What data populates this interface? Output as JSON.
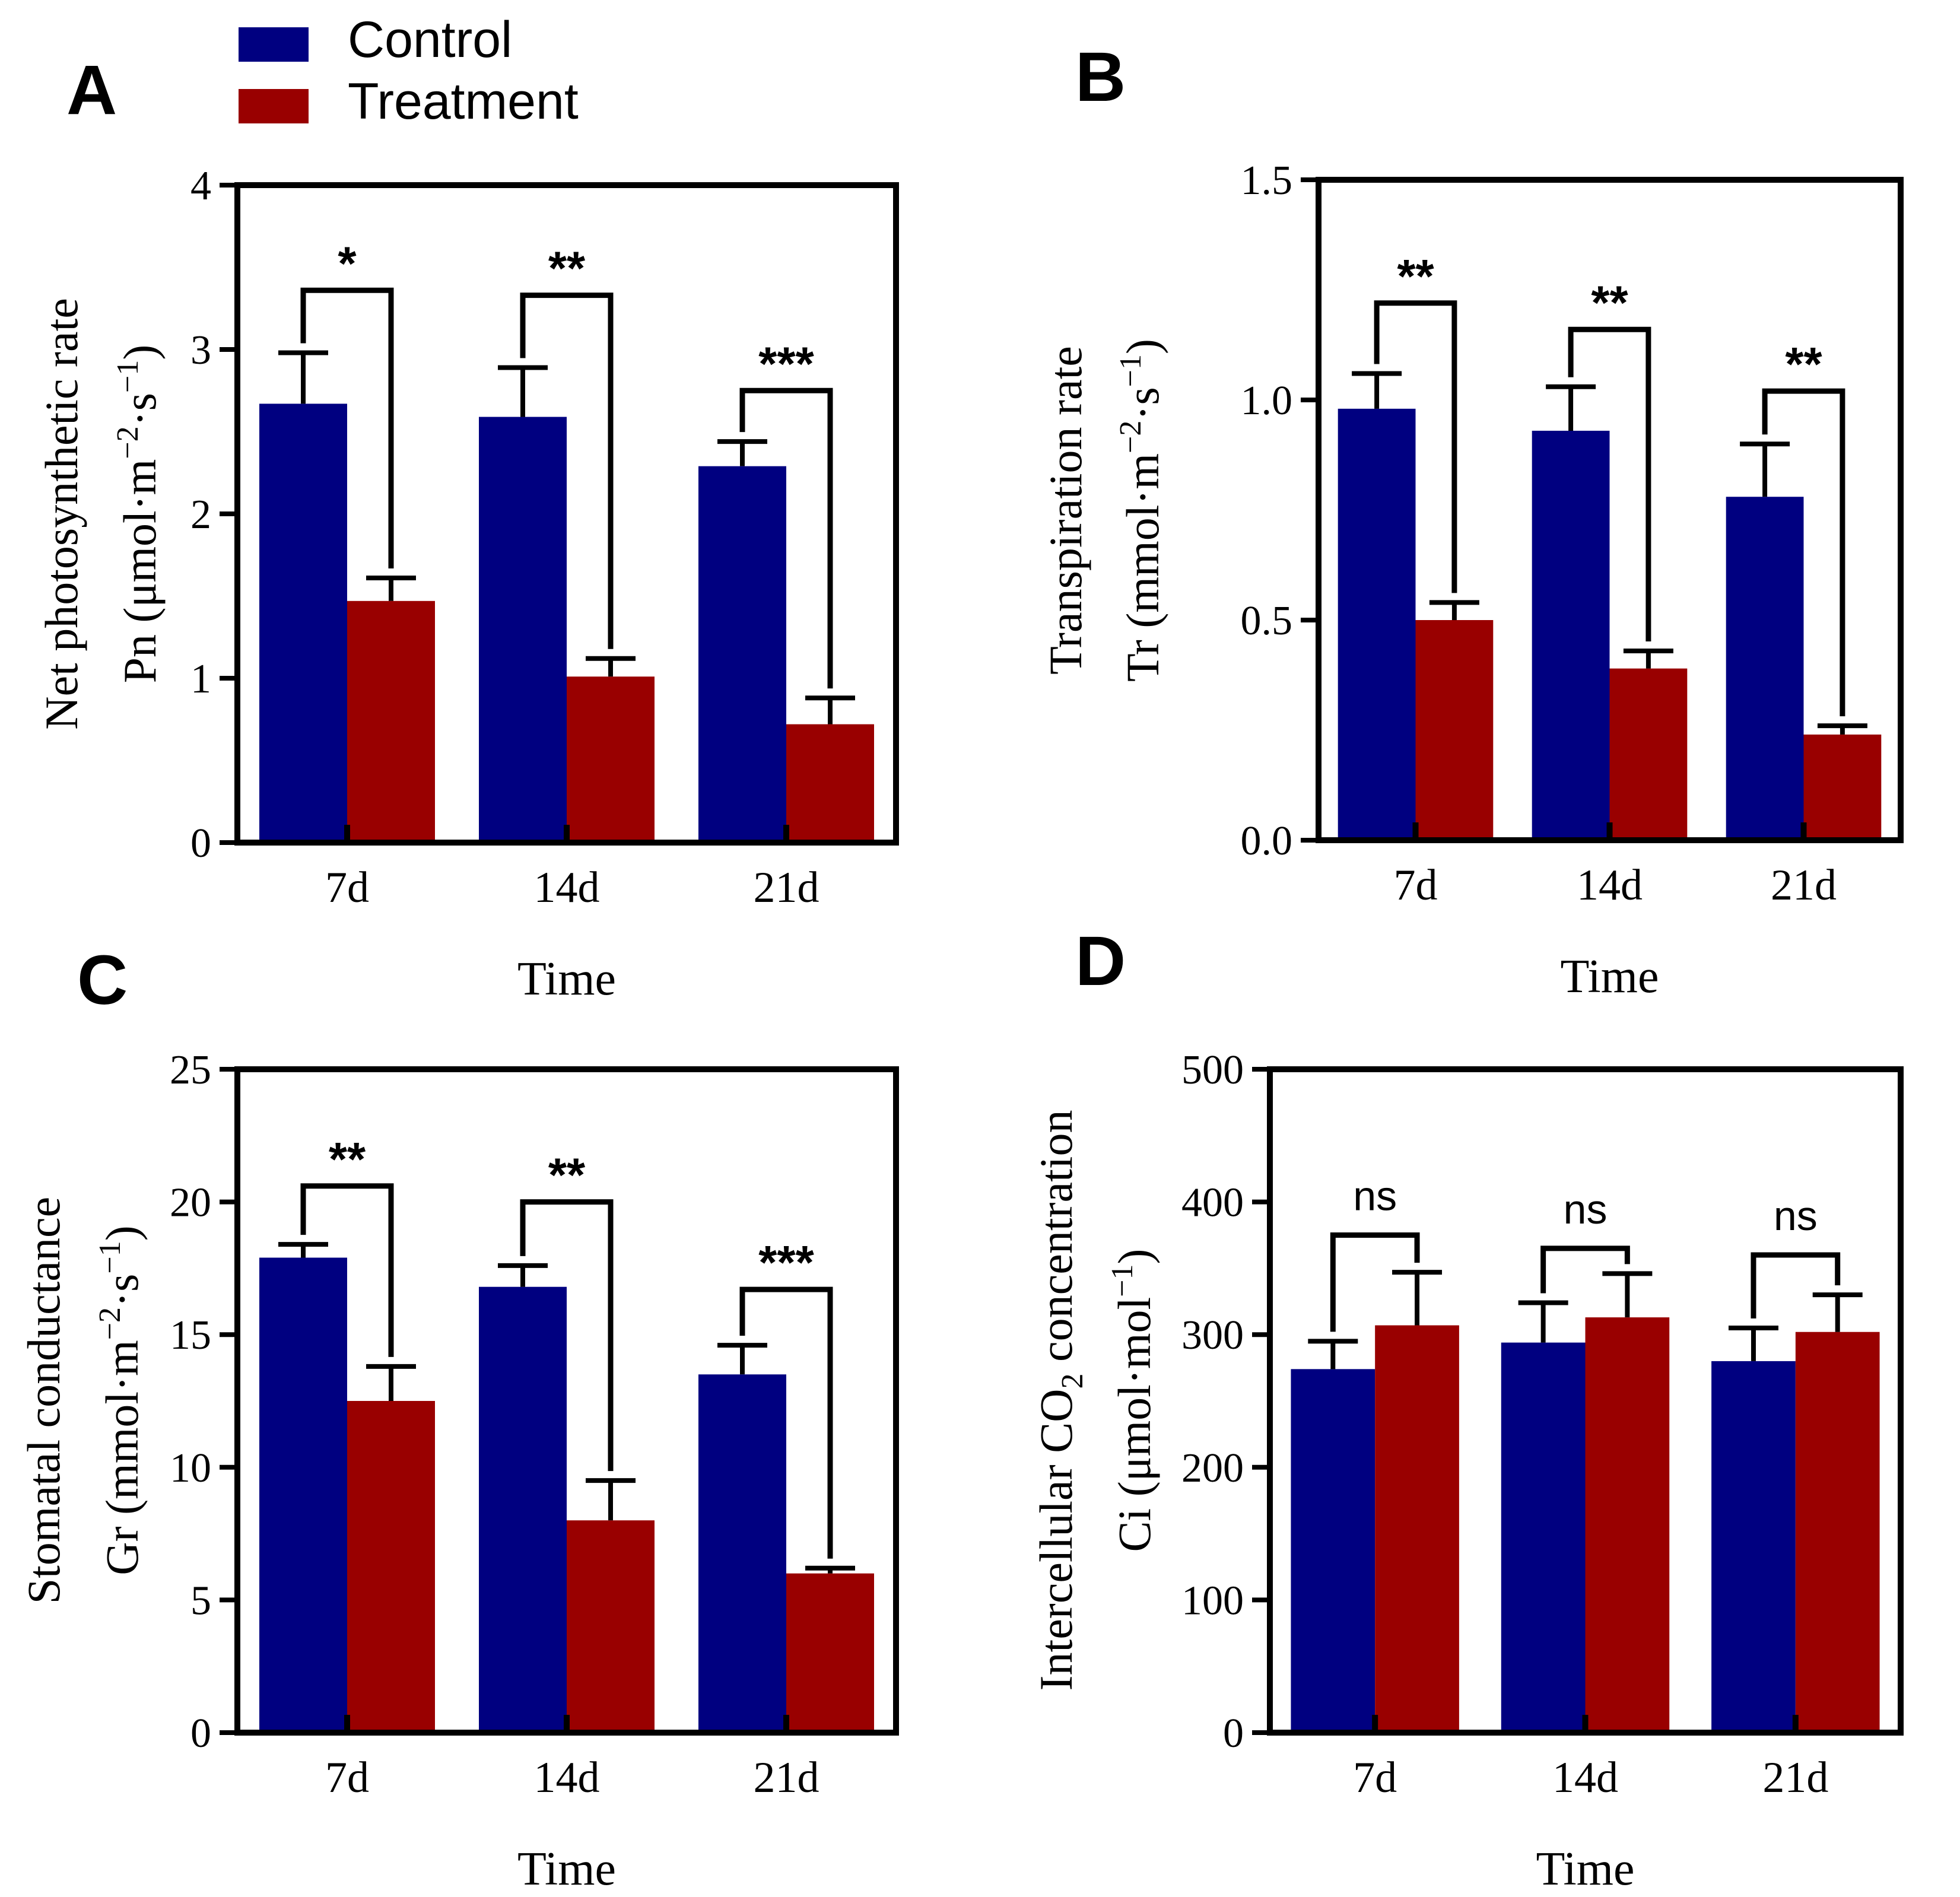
{
  "legend": {
    "entries": [
      {
        "name": "Control",
        "color": "#000080"
      },
      {
        "name": "Treatment",
        "color": "#990000"
      }
    ]
  },
  "colors": {
    "control": "#000080",
    "treatment": "#990000",
    "axis": "#000000"
  },
  "chart_data": [
    {
      "panel": "A",
      "type": "bar",
      "xlabel": "Time",
      "ylabel_lines": [
        "Net photosynthetic rate",
        "Pn (μmol·m",
        "−2",
        "·s",
        "−1",
        ")"
      ],
      "categories": [
        "7d",
        "14d",
        "21d"
      ],
      "ylim": [
        0,
        4
      ],
      "yticks": [
        0,
        1,
        2,
        3,
        4
      ],
      "ytick_labels": [
        "0",
        "1",
        "2",
        "3",
        "4"
      ],
      "series": [
        {
          "name": "Control",
          "values": [
            2.67,
            2.59,
            2.29
          ],
          "errors": [
            0.31,
            0.3,
            0.15
          ]
        },
        {
          "name": "Treatment",
          "values": [
            1.47,
            1.01,
            0.72
          ],
          "errors": [
            0.14,
            0.11,
            0.16
          ]
        }
      ],
      "significance": [
        "*",
        "**",
        "***"
      ],
      "sig_bracket_y": [
        3.36,
        3.33,
        2.75
      ]
    },
    {
      "panel": "B",
      "type": "bar",
      "xlabel": "Time",
      "ylabel_lines": [
        "Transpiration rate",
        "Tr (mmol·m",
        "−2",
        "·s",
        "−1",
        ")"
      ],
      "categories": [
        "7d",
        "14d",
        "21d"
      ],
      "ylim": [
        0,
        1.5
      ],
      "yticks": [
        0,
        0.5,
        1.0,
        1.5
      ],
      "ytick_labels": [
        "0.0",
        "0.5",
        "1.0",
        "1.5"
      ],
      "series": [
        {
          "name": "Control",
          "values": [
            0.98,
            0.93,
            0.78
          ],
          "errors": [
            0.08,
            0.1,
            0.12
          ]
        },
        {
          "name": "Treatment",
          "values": [
            0.5,
            0.39,
            0.24
          ],
          "errors": [
            0.04,
            0.04,
            0.02
          ]
        }
      ],
      "significance": [
        "**",
        "**",
        "**"
      ],
      "sig_bracket_y": [
        1.22,
        1.16,
        1.02
      ]
    },
    {
      "panel": "C",
      "type": "bar",
      "xlabel": "Time",
      "ylabel_lines": [
        "Stomatal conductance",
        "Gr (mmol·m",
        "−2",
        "·s",
        "−1",
        ")"
      ],
      "categories": [
        "7d",
        "14d",
        "21d"
      ],
      "ylim": [
        0,
        25
      ],
      "yticks": [
        0,
        5,
        10,
        15,
        20,
        25
      ],
      "ytick_labels": [
        "0",
        "5",
        "10",
        "15",
        "20",
        "25"
      ],
      "series": [
        {
          "name": "Control",
          "values": [
            17.9,
            16.8,
            13.5
          ],
          "errors": [
            0.5,
            0.8,
            1.1
          ]
        },
        {
          "name": "Treatment",
          "values": [
            12.5,
            8.0,
            6.0
          ],
          "errors": [
            1.3,
            1.5,
            0.2
          ]
        }
      ],
      "significance": [
        "**",
        "**",
        "***"
      ],
      "sig_bracket_y": [
        20.6,
        20.0,
        16.7
      ]
    },
    {
      "panel": "D",
      "type": "bar",
      "xlabel": "Time",
      "ylabel_lines": [
        "Intercellular CO",
        "2",
        " concentration",
        "Ci (μmol·mol",
        "−1",
        ")"
      ],
      "categories": [
        "7d",
        "14d",
        "21d"
      ],
      "ylim": [
        0,
        500
      ],
      "yticks": [
        0,
        100,
        200,
        300,
        400,
        500
      ],
      "ytick_labels": [
        "0",
        "100",
        "200",
        "300",
        "400",
        "500"
      ],
      "series": [
        {
          "name": "Control",
          "values": [
            274,
            294,
            280
          ],
          "errors": [
            21,
            30,
            25
          ]
        },
        {
          "name": "Treatment",
          "values": [
            307,
            313,
            302
          ],
          "errors": [
            40,
            33,
            28
          ]
        }
      ],
      "significance": [
        "ns",
        "ns",
        "ns"
      ],
      "sig_bracket_y": [
        375,
        365,
        360
      ]
    }
  ]
}
